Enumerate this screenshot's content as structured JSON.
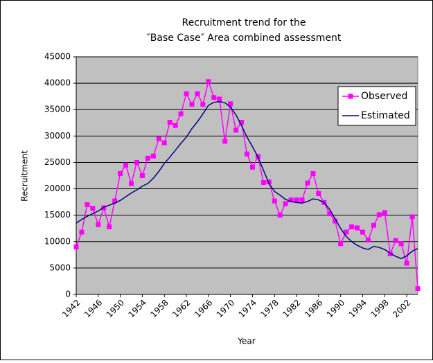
{
  "chart_data": {
    "type": "line",
    "title": [
      "Recruitment trend for the",
      "″Base Case″ Area combined assessment"
    ],
    "xlabel": "Year",
    "ylabel": "Recruitment",
    "x": [
      1942,
      1943,
      1944,
      1945,
      1946,
      1947,
      1948,
      1949,
      1950,
      1951,
      1952,
      1953,
      1954,
      1955,
      1956,
      1957,
      1958,
      1959,
      1960,
      1961,
      1962,
      1963,
      1964,
      1965,
      1966,
      1967,
      1968,
      1969,
      1970,
      1971,
      1972,
      1973,
      1974,
      1975,
      1976,
      1977,
      1978,
      1979,
      1980,
      1981,
      1982,
      1983,
      1984,
      1985,
      1986,
      1987,
      1988,
      1989,
      1990,
      1991,
      1992,
      1993,
      1994,
      1995,
      1996,
      1997,
      1998,
      1999,
      2000,
      2001,
      2002,
      2003,
      2004
    ],
    "series": [
      {
        "name": "Observed",
        "color": "#ff00ff",
        "marker": "square",
        "values": [
          9000,
          11800,
          17000,
          16300,
          13200,
          16400,
          12800,
          17700,
          22900,
          24500,
          21000,
          25000,
          22500,
          25800,
          26200,
          29500,
          28700,
          32600,
          32000,
          34200,
          38000,
          36000,
          38000,
          36000,
          40300,
          37300,
          37000,
          29000,
          36100,
          31100,
          32600,
          26600,
          24100,
          26100,
          21200,
          21300,
          17700,
          15000,
          17200,
          17900,
          17900,
          17900,
          21100,
          22900,
          19100,
          17400,
          15300,
          13900,
          9600,
          11800,
          12800,
          12600,
          11800,
          10300,
          13100,
          15100,
          15500,
          7700,
          10200,
          9600,
          5900,
          14700,
          1100
        ]
      },
      {
        "name": "Estimated",
        "color": "#000080",
        "values": [
          13500,
          14200,
          14800,
          15300,
          15800,
          16500,
          16900,
          17300,
          17800,
          18500,
          19200,
          19800,
          20500,
          21000,
          22000,
          23300,
          24800,
          26000,
          27300,
          28600,
          29800,
          31400,
          32700,
          34200,
          35800,
          36400,
          36500,
          36300,
          35500,
          34000,
          32000,
          29800,
          28000,
          26000,
          23500,
          21000,
          19500,
          18800,
          18000,
          17600,
          17400,
          17300,
          17600,
          18100,
          17900,
          17400,
          16100,
          14300,
          12500,
          11000,
          10000,
          9300,
          8800,
          8500,
          9100,
          8900,
          8500,
          7800,
          7200,
          6800,
          7300,
          8200,
          8700
        ]
      }
    ],
    "xlim": [
      1942,
      2004
    ],
    "xticks": [
      1942,
      1946,
      1950,
      1954,
      1958,
      1962,
      1966,
      1970,
      1974,
      1978,
      1982,
      1986,
      1990,
      1994,
      1998,
      2002
    ],
    "ylim": [
      0,
      45000
    ],
    "yticks": [
      0,
      5000,
      10000,
      15000,
      20000,
      25000,
      30000,
      35000,
      40000,
      45000
    ],
    "grid": true,
    "legend": "upper right",
    "background": "#c0c0c0"
  }
}
